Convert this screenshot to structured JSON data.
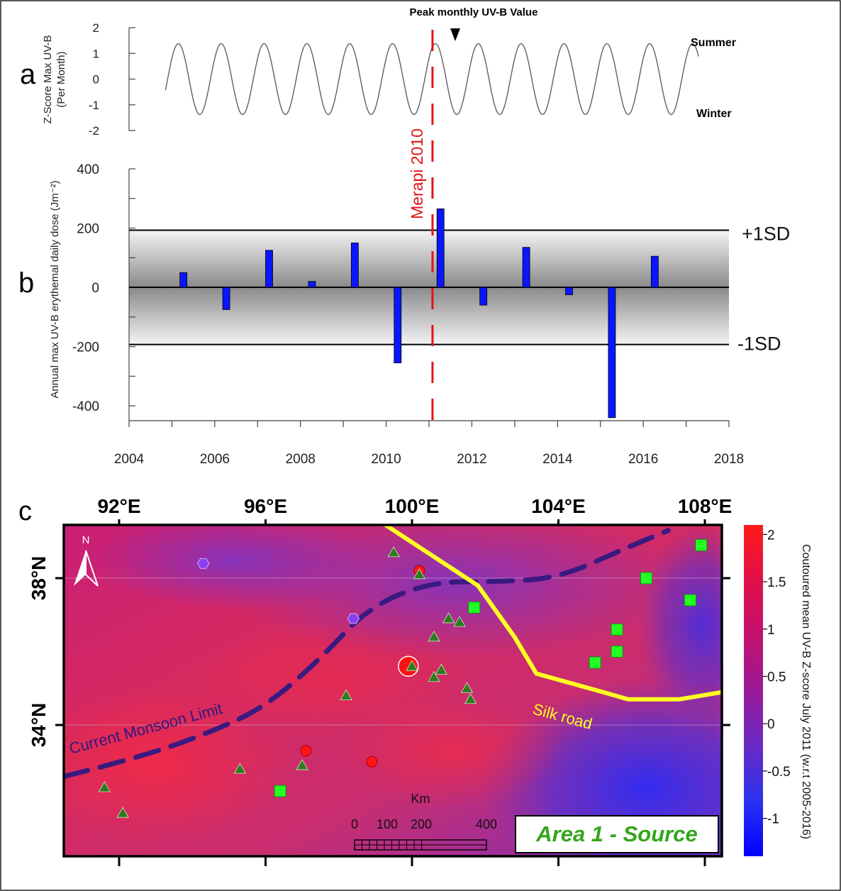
{
  "panel_labels": {
    "a": "a",
    "b": "b",
    "c": "c"
  },
  "chart_data": [
    {
      "type": "line",
      "panel": "a",
      "ylabel_line1": "Z-Score Max UV-B",
      "ylabel_line2": "(Per Month)",
      "yticks": [
        "2",
        "1",
        "0",
        "-1",
        "-2"
      ],
      "ylim": [
        -2,
        2
      ],
      "xlim": [
        2004,
        2018
      ],
      "annotations": {
        "peak": "Peak monthly UV-B Value",
        "summer": "Summer",
        "winter": "Winter"
      },
      "series": [
        {
          "start_year": 2004.8,
          "end_year": 2017.25,
          "period_years": 1,
          "peak": 1.38,
          "trough": -1.38
        }
      ],
      "color": "#555555"
    },
    {
      "type": "bar",
      "panel": "b",
      "ylabel": "Annual max UV-B erythemal daily dose (Jm⁻²)",
      "ylim": [
        -450,
        400
      ],
      "xlim": [
        2004,
        2018
      ],
      "yticks": [
        "400",
        "200",
        "0",
        "-200",
        "-400"
      ],
      "xticks": [
        "2004",
        "2006",
        "2008",
        "2010",
        "2012",
        "2014",
        "2016",
        "2018"
      ],
      "x": [
        2005.5,
        2006.5,
        2007.5,
        2008.5,
        2009.5,
        2010.5,
        2011.5,
        2012.5,
        2013.5,
        2014.5,
        2015.5,
        2016.5
      ],
      "values": [
        50,
        -75,
        125,
        20,
        150,
        -255,
        265,
        -60,
        135,
        -25,
        -440,
        105
      ],
      "sd_lines": {
        "plus": 193,
        "minus": -193,
        "plus_label": "+1SD",
        "minus_label": "-1SD"
      },
      "event": {
        "label": "Merapi 2010",
        "x": 2010.85
      },
      "bar_color": "#0a16ff"
    },
    {
      "type": "map",
      "panel": "c",
      "lon_labels": [
        "92°E",
        "96°E",
        "100°E",
        "104°E",
        "108°E"
      ],
      "lat_labels": [
        "38°N",
        "34°N"
      ],
      "lons": [
        92,
        96,
        100,
        104,
        108
      ],
      "lats": [
        38,
        34
      ],
      "north_label": "N",
      "monsoon_label": "Current Monsoon Limit",
      "silk_label": "Silk road",
      "area_label": "Area 1 - Source",
      "scale": {
        "title": "Km",
        "labels": [
          "0",
          "100",
          "200",
          "400"
        ]
      },
      "colorbar": {
        "label": "Coutoured mean UV-B Z-score July 2011 (w.r.t 2005-2016)",
        "ticks": [
          "2",
          "1.5",
          "1",
          "0.5",
          "0",
          "-0.5",
          "-1"
        ],
        "values": [
          2,
          1.5,
          1,
          0.5,
          0,
          -0.5,
          -1
        ],
        "range": [
          -1.4,
          2.1
        ],
        "colors": [
          "#ff1a1a",
          "#e0104a",
          "#c4106e",
          "#9a1a98",
          "#6a2ac4",
          "#2a33f0",
          "#0000ff"
        ]
      },
      "markers": {
        "triangles": [
          [
            91.6,
            32.3
          ],
          [
            92.1,
            31.6
          ],
          [
            95.3,
            32.8
          ],
          [
            97.0,
            32.9
          ],
          [
            98.2,
            34.8
          ],
          [
            99.5,
            38.7
          ],
          [
            100.2,
            38.1
          ],
          [
            101.0,
            36.9
          ],
          [
            101.3,
            36.8
          ],
          [
            100.6,
            36.4
          ],
          [
            100.6,
            35.3
          ],
          [
            100.8,
            35.5
          ],
          [
            101.5,
            35.0
          ],
          [
            101.6,
            34.7
          ],
          [
            100.0,
            35.6
          ]
        ],
        "squares": [
          [
            107.9,
            38.9
          ],
          [
            106.4,
            38.0
          ],
          [
            107.6,
            37.4
          ],
          [
            101.7,
            37.2
          ],
          [
            105.6,
            36.6
          ],
          [
            105.6,
            36.0
          ],
          [
            105.0,
            35.7
          ],
          [
            96.4,
            32.2
          ]
        ],
        "circles": [
          [
            97.1,
            33.3
          ],
          [
            98.9,
            33.0
          ],
          [
            100.2,
            38.2
          ]
        ],
        "hexagons": [
          [
            94.3,
            38.4
          ],
          [
            98.4,
            36.9
          ]
        ],
        "big_circle": [
          99.9,
          35.6
        ],
        "silk_road": [
          [
            99.2,
            39.5
          ],
          [
            101.8,
            37.8
          ],
          [
            102.8,
            36.4
          ],
          [
            103.4,
            35.4
          ],
          [
            105.2,
            34.9
          ],
          [
            105.9,
            34.7
          ],
          [
            107.3,
            34.7
          ],
          [
            108.5,
            34.9
          ]
        ],
        "monsoon": [
          [
            90.5,
            32.6
          ],
          [
            92.5,
            33.1
          ],
          [
            94.5,
            33.8
          ],
          [
            96.0,
            34.5
          ],
          [
            97.5,
            35.8
          ],
          [
            98.8,
            37.2
          ],
          [
            100.5,
            37.9
          ],
          [
            102.3,
            37.9
          ],
          [
            104.0,
            38.0
          ],
          [
            105.8,
            38.8
          ],
          [
            107.0,
            39.3
          ]
        ]
      }
    }
  ]
}
